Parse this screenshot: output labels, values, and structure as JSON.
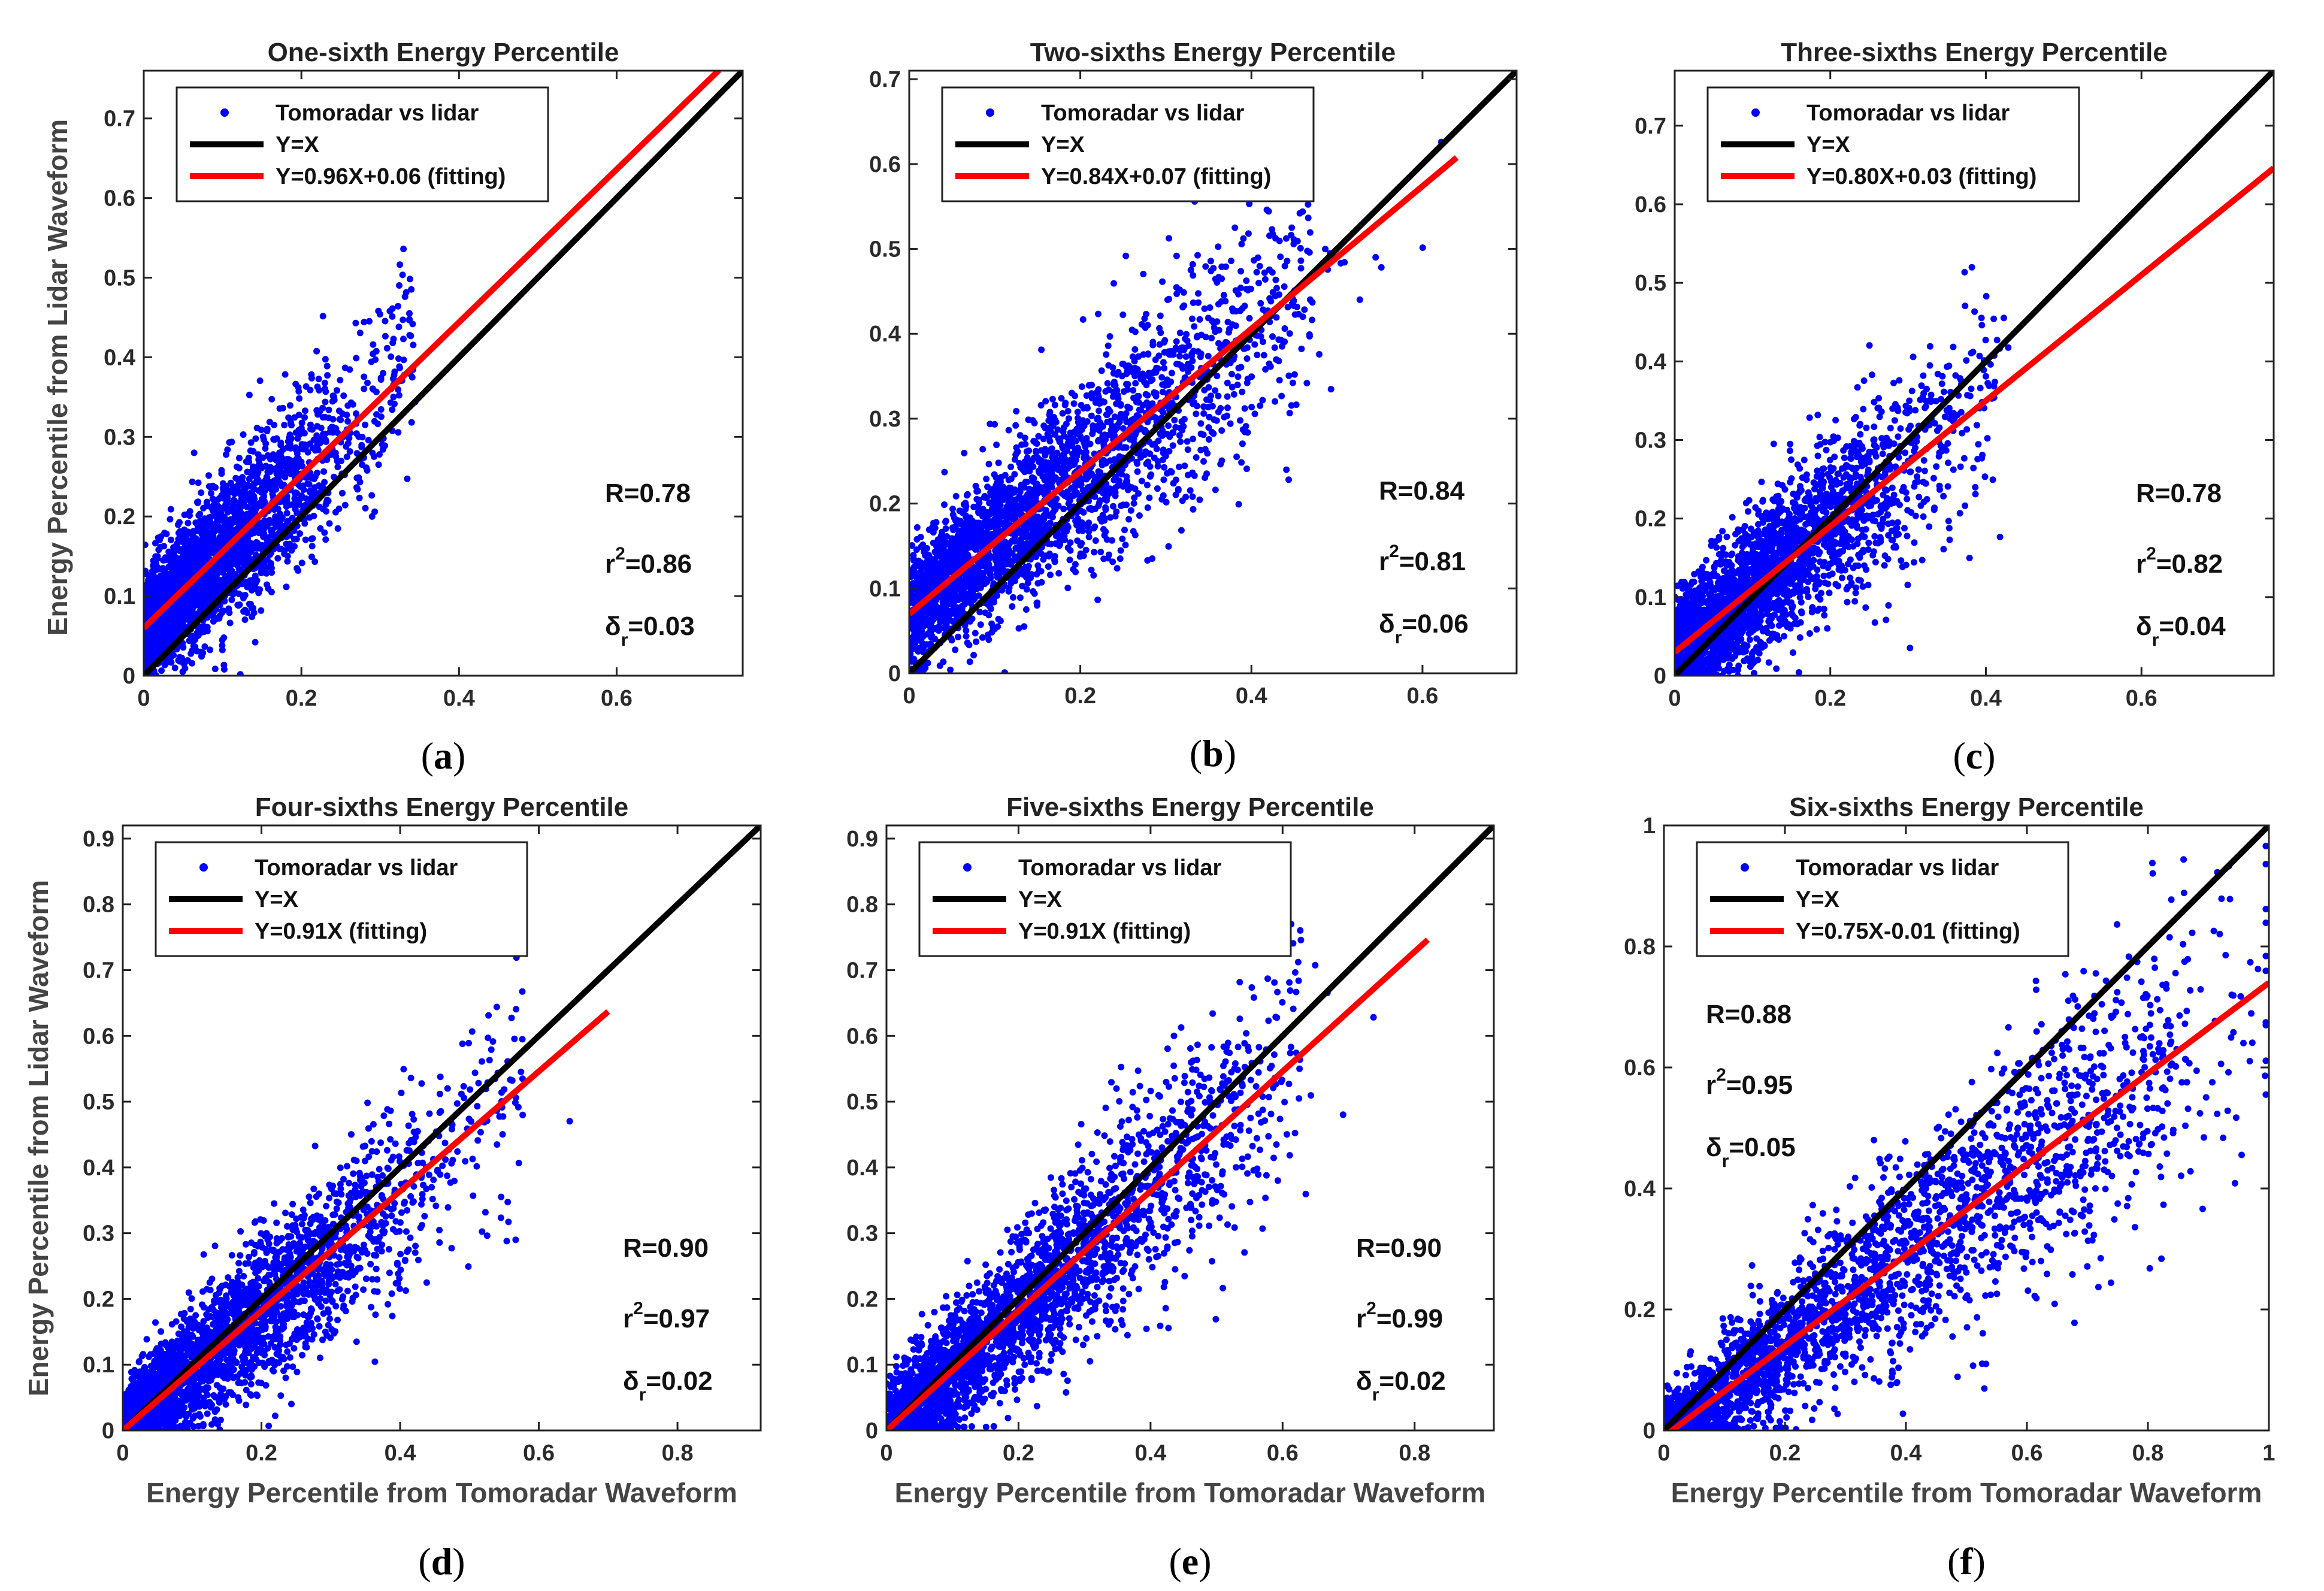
{
  "figure": {
    "ylabel": "Energy Percentile from Lidar Waveform",
    "xlabel": "Energy Percentile from Tomoradar Waveform"
  },
  "colors": {
    "points": "#0000ff",
    "identity": "#000000",
    "fit": "#ff0000"
  },
  "chart_data": [
    {
      "type": "scatter",
      "letter": "a",
      "title": "One-sixth Energy Percentile",
      "xlim": [
        0,
        0.76
      ],
      "ylim": [
        0,
        0.76
      ],
      "xticks": [
        0,
        0.2,
        0.4,
        0.6
      ],
      "yticks": [
        0,
        0.1,
        0.2,
        0.3,
        0.4,
        0.5,
        0.6,
        0.7
      ],
      "show_ylabel": true,
      "show_xlabel": false,
      "legend": {
        "points": "Tomoradar vs lidar",
        "identity": "Y=X",
        "fit": "Y=0.96X+0.06 (fitting)"
      },
      "identity_line": {
        "slope": 1,
        "intercept": 0
      },
      "fit_line": {
        "slope": 0.96,
        "intercept": 0.06,
        "x_range": [
          0,
          0.73
        ]
      },
      "stats": {
        "R": "0.78",
        "r2": "0.86",
        "delta": "0.03"
      },
      "stats_position": "bottom-right",
      "scatter_center": 0.1,
      "scatter_spread": 0.33,
      "scatter_fit": {
        "slope": 0.96,
        "intercept": 0.06
      }
    },
    {
      "type": "scatter",
      "letter": "b",
      "title": "Two-sixths Energy Percentile",
      "xlim": [
        0,
        0.71
      ],
      "ylim": [
        0,
        0.71
      ],
      "xticks": [
        0,
        0.2,
        0.4,
        0.6
      ],
      "yticks": [
        0,
        0.1,
        0.2,
        0.3,
        0.4,
        0.5,
        0.6,
        0.7
      ],
      "show_ylabel": false,
      "show_xlabel": false,
      "legend": {
        "points": "Tomoradar vs lidar",
        "identity": "Y=X",
        "fit": "Y=0.84X+0.07 (fitting)"
      },
      "identity_line": {
        "slope": 1,
        "intercept": 0
      },
      "fit_line": {
        "slope": 0.84,
        "intercept": 0.07,
        "x_range": [
          0,
          0.64
        ]
      },
      "stats": {
        "R": "0.84",
        "r2": "0.81",
        "delta": "0.06"
      },
      "stats_position": "bottom-right",
      "scatter_center": 0.2,
      "scatter_spread": 0.45,
      "scatter_fit": {
        "slope": 0.84,
        "intercept": 0.07
      }
    },
    {
      "type": "scatter",
      "letter": "c",
      "title": "Three-sixths Energy Percentile",
      "xlim": [
        0,
        0.77
      ],
      "ylim": [
        0,
        0.77
      ],
      "xticks": [
        0,
        0.2,
        0.4,
        0.6
      ],
      "yticks": [
        0,
        0.1,
        0.2,
        0.3,
        0.4,
        0.5,
        0.6,
        0.7
      ],
      "show_ylabel": false,
      "show_xlabel": false,
      "legend": {
        "points": "Tomoradar vs lidar",
        "identity": "Y=X",
        "fit": "Y=0.80X+0.03 (fitting)"
      },
      "identity_line": {
        "slope": 1,
        "intercept": 0
      },
      "fit_line": {
        "slope": 0.8,
        "intercept": 0.03,
        "x_range": [
          0,
          0.77
        ]
      },
      "stats": {
        "R": "0.78",
        "r2": "0.82",
        "delta": "0.04"
      },
      "stats_position": "bottom-right",
      "scatter_center": 0.14,
      "scatter_spread": 0.4,
      "scatter_fit": {
        "slope": 0.8,
        "intercept": 0.03
      }
    },
    {
      "type": "scatter",
      "letter": "d",
      "title": "Four-sixths Energy Percentile",
      "xlim": [
        0,
        0.92
      ],
      "ylim": [
        0,
        0.92
      ],
      "xticks": [
        0,
        0.2,
        0.4,
        0.6,
        0.8
      ],
      "yticks": [
        0,
        0.1,
        0.2,
        0.3,
        0.4,
        0.5,
        0.6,
        0.7,
        0.8,
        0.9
      ],
      "show_ylabel": true,
      "show_xlabel": true,
      "legend": {
        "points": "Tomoradar vs lidar",
        "identity": "Y=X",
        "fit": "Y=0.91X (fitting)"
      },
      "identity_line": {
        "slope": 1,
        "intercept": 0
      },
      "fit_line": {
        "slope": 0.91,
        "intercept": 0,
        "x_range": [
          0,
          0.7
        ]
      },
      "stats": {
        "R": "0.90",
        "r2": "0.97",
        "delta": "0.02"
      },
      "stats_position": "bottom-right",
      "scatter_center": 0.18,
      "scatter_spread": 0.55,
      "scatter_fit": {
        "slope": 0.91,
        "intercept": 0
      }
    },
    {
      "type": "scatter",
      "letter": "e",
      "title": "Five-sixths Energy Percentile",
      "xlim": [
        0,
        0.92
      ],
      "ylim": [
        0,
        0.92
      ],
      "xticks": [
        0,
        0.2,
        0.4,
        0.6,
        0.8
      ],
      "yticks": [
        0,
        0.1,
        0.2,
        0.3,
        0.4,
        0.5,
        0.6,
        0.7,
        0.8,
        0.9
      ],
      "show_ylabel": false,
      "show_xlabel": true,
      "legend": {
        "points": "Tomoradar vs lidar",
        "identity": "Y=X",
        "fit": "Y=0.91X (fitting)"
      },
      "identity_line": {
        "slope": 1,
        "intercept": 0
      },
      "fit_line": {
        "slope": 0.91,
        "intercept": 0,
        "x_range": [
          0,
          0.82
        ]
      },
      "stats": {
        "R": "0.90",
        "r2": "0.99",
        "delta": "0.02"
      },
      "stats_position": "bottom-right",
      "scatter_center": 0.25,
      "scatter_spread": 0.6,
      "scatter_fit": {
        "slope": 0.91,
        "intercept": 0
      }
    },
    {
      "type": "scatter",
      "letter": "f",
      "title": "Six-sixths Energy Percentile",
      "xlim": [
        0,
        1
      ],
      "ylim": [
        0,
        1
      ],
      "xticks": [
        0,
        0.2,
        0.4,
        0.6,
        0.8,
        1
      ],
      "yticks": [
        0,
        0.2,
        0.4,
        0.6,
        0.8,
        1
      ],
      "show_ylabel": false,
      "show_xlabel": true,
      "legend": {
        "points": "Tomoradar vs lidar",
        "identity": "Y=X",
        "fit": "Y=0.75X-0.01 (fitting)"
      },
      "identity_line": {
        "slope": 1,
        "intercept": 0
      },
      "fit_line": {
        "slope": 0.75,
        "intercept": -0.01,
        "x_range": [
          0,
          1
        ]
      },
      "stats": {
        "R": "0.88",
        "r2": "0.95",
        "delta": "0.05"
      },
      "stats_position": "top-left",
      "scatter_center": 0.45,
      "scatter_spread": 0.8,
      "scatter_fit": {
        "slope": 0.75,
        "intercept": -0.01
      }
    }
  ]
}
